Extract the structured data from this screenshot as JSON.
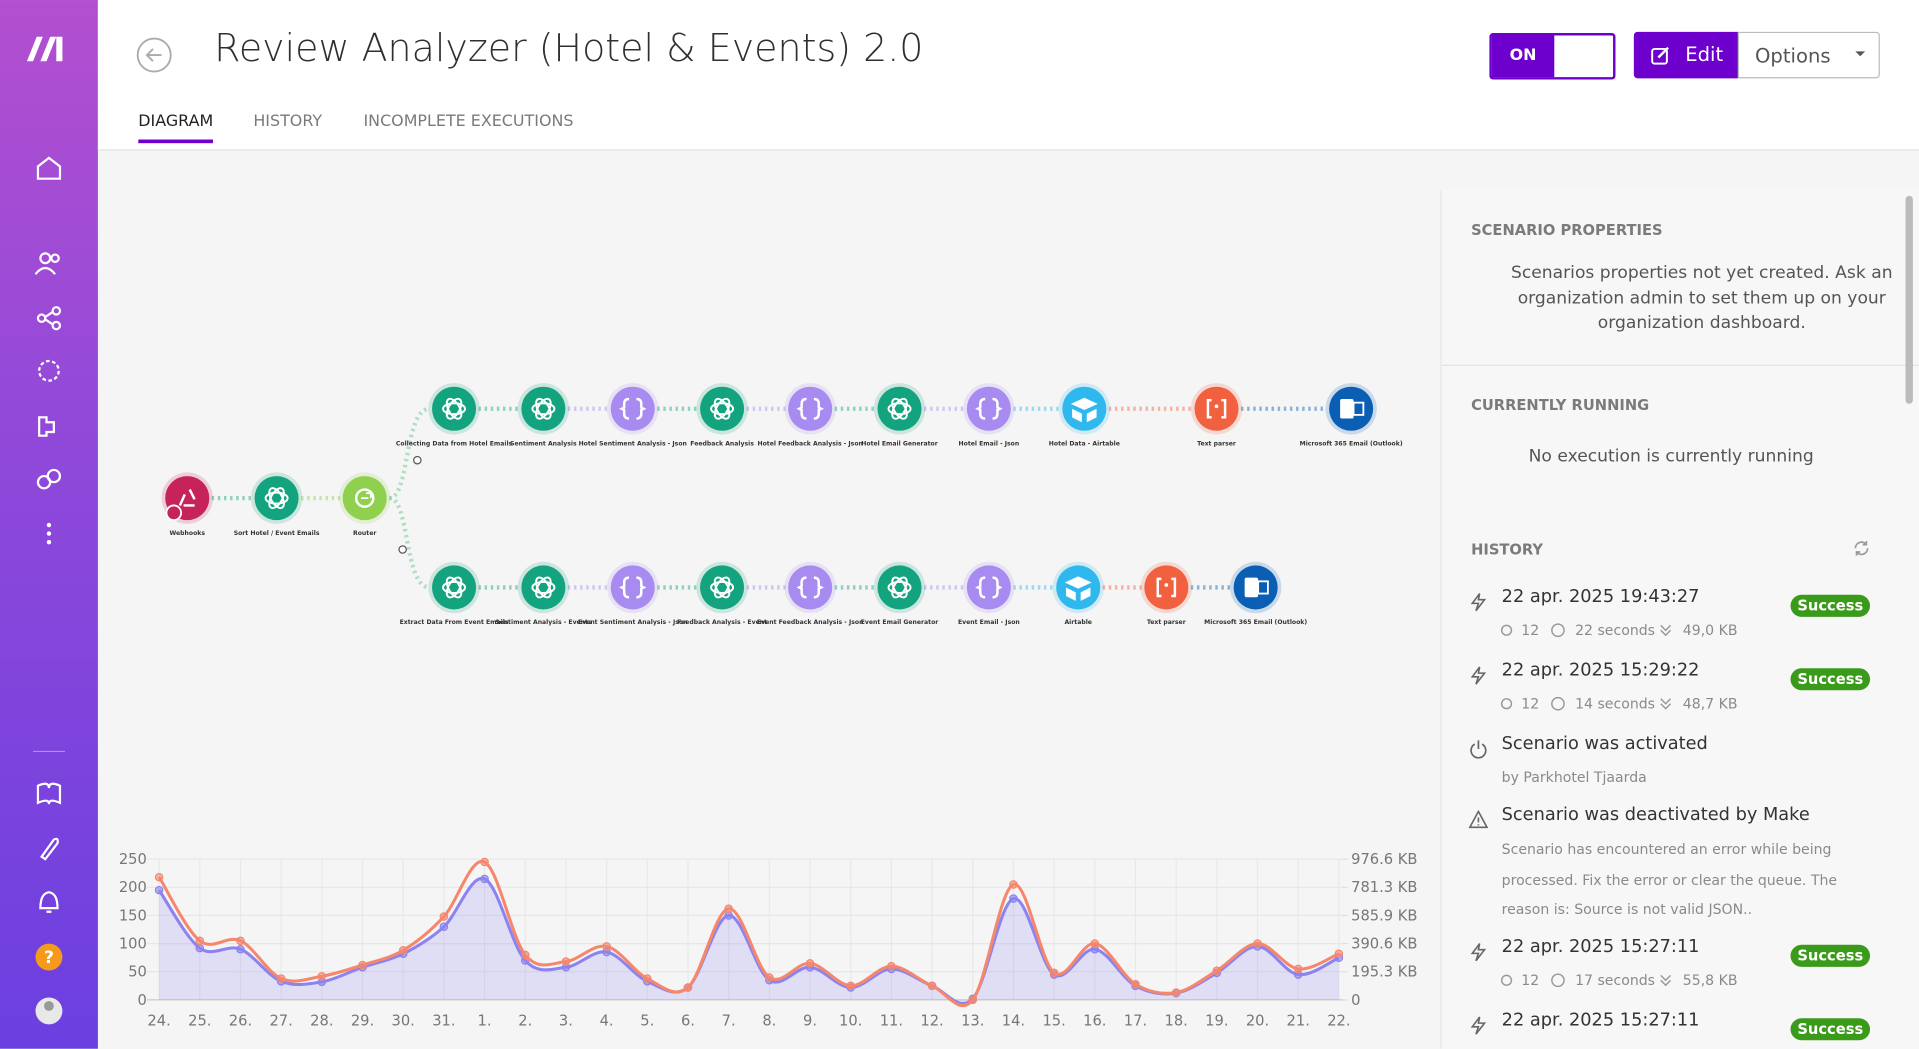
{
  "header": {
    "title": "Review Analyzer (Hotel & Events) 2.0",
    "tabs": [
      "DIAGRAM",
      "HISTORY",
      "INCOMPLETE EXECUTIONS"
    ],
    "toggle": "ON",
    "edit": "Edit",
    "options": "Options"
  },
  "sidebar": {
    "help": "?"
  },
  "diagram": {
    "nodes": [
      {
        "label": "Webhooks",
        "color": "#c6235a"
      },
      {
        "label": "Sort Hotel / Event Emails",
        "color": "#14a37f"
      },
      {
        "label": "Router",
        "color": "#8fd14f"
      },
      {
        "label": "Collecting Data from Hotel Emails",
        "color": "#14a37f"
      },
      {
        "label": "Sentiment Analysis",
        "color": "#14a37f"
      },
      {
        "label": "Hotel Sentiment Analysis - Json",
        "color": "#a78bf0"
      },
      {
        "label": "Feedback Analysis",
        "color": "#14a37f"
      },
      {
        "label": "Hotel Feedback Analysis - Json",
        "color": "#a78bf0"
      },
      {
        "label": "Hotel Email Generator",
        "color": "#14a37f"
      },
      {
        "label": "Hotel Email - Json",
        "color": "#a78bf0"
      },
      {
        "label": "Hotel Data - Airtable",
        "color": "#2fb8ee"
      },
      {
        "label": "Text parser",
        "color": "#f2613f"
      },
      {
        "label": "Microsoft 365 Email (Outlook)",
        "color": "#0a5fb4"
      },
      {
        "label": "Extract Data From Event Emails",
        "color": "#14a37f"
      },
      {
        "label": "Sentiment Analysis - Events",
        "color": "#14a37f"
      },
      {
        "label": "Event Sentiment Analysis - Json",
        "color": "#a78bf0"
      },
      {
        "label": "Feedback Analysis - Event",
        "color": "#14a37f"
      },
      {
        "label": "Event Feedback Analysis - Json",
        "color": "#a78bf0"
      },
      {
        "label": "Event Email Generator",
        "color": "#14a37f"
      },
      {
        "label": "Event Email - Json",
        "color": "#a78bf0"
      },
      {
        "label": "Airtable",
        "color": "#2fb8ee"
      },
      {
        "label": "Text parser",
        "color": "#f2613f"
      },
      {
        "label": "Microsoft 365 Email (Outlook)",
        "color": "#0a5fb4"
      }
    ]
  },
  "panel": {
    "properties": {
      "title": "SCENARIO PROPERTIES",
      "text": "Scenarios properties not yet created. Ask an organization admin to set them up on your organization dashboard."
    },
    "running": {
      "title": "CURRENTLY RUNNING",
      "text": "No execution is currently running"
    },
    "history": {
      "title": "HISTORY",
      "items": [
        {
          "date": "22 apr. 2025 19:43:27",
          "operations": "12",
          "duration": "22 seconds",
          "size": "49,0 KB",
          "status": "Success"
        },
        {
          "date": "22 apr. 2025 15:29:22",
          "operations": "12",
          "duration": "14 seconds",
          "size": "48,7 KB",
          "status": "Success"
        },
        {
          "title": "Scenario was activated",
          "by": "by Parkhotel Tjaarda"
        },
        {
          "title": "Scenario was deactivated by Make",
          "message": "Scenario has encountered an error while being processed. Fix the error or clear the queue. The reason is: Source is not valid JSON.."
        },
        {
          "date": "22 apr. 2025 15:27:11",
          "operations": "12",
          "duration": "17 seconds",
          "size": "55,8 KB",
          "status": "Success"
        },
        {
          "date": "22 apr. 2025 15:27:11",
          "status": "Success"
        }
      ]
    }
  },
  "chart_data": {
    "type": "line",
    "grid": true,
    "categories": [
      "24.",
      "25.",
      "26.",
      "27.",
      "28.",
      "29.",
      "30.",
      "31.",
      "1.",
      "2.",
      "3.",
      "4.",
      "5.",
      "6.",
      "7.",
      "8.",
      "9.",
      "10.",
      "11.",
      "12.",
      "13.",
      "14.",
      "15.",
      "16.",
      "17.",
      "18.",
      "19.",
      "20.",
      "21.",
      "22."
    ],
    "series": [
      {
        "color": "#8b83f0",
        "values": [
          195,
          92,
          90,
          33,
          32,
          58,
          82,
          130,
          215,
          70,
          58,
          85,
          33,
          22,
          150,
          35,
          58,
          22,
          55,
          25,
          2,
          180,
          45,
          90,
          25,
          12,
          48,
          95,
          45,
          75
        ]
      },
      {
        "color": "#f5876c",
        "axis": "y2",
        "values": [
          852,
          410,
          410,
          148,
          164,
          242,
          344,
          578,
          957,
          312,
          266,
          371,
          148,
          86,
          633,
          156,
          254,
          98,
          234,
          98,
          0,
          801,
          188,
          391,
          109,
          51,
          203,
          391,
          215,
          320
        ]
      }
    ],
    "ylim": [
      0,
      250
    ],
    "yticks": [
      0,
      50,
      100,
      150,
      200,
      250
    ],
    "y2lim": [
      0,
      976.6
    ],
    "y2ticks": [
      {
        "value": 0,
        "label": "0"
      },
      {
        "value": 195.3,
        "label": "195.3 KB"
      },
      {
        "value": 390.6,
        "label": "390.6 KB"
      },
      {
        "value": 585.9,
        "label": "585.9 KB"
      },
      {
        "value": 781.3,
        "label": "781.3 KB"
      },
      {
        "value": 976.6,
        "label": "976.6 KB"
      }
    ]
  }
}
